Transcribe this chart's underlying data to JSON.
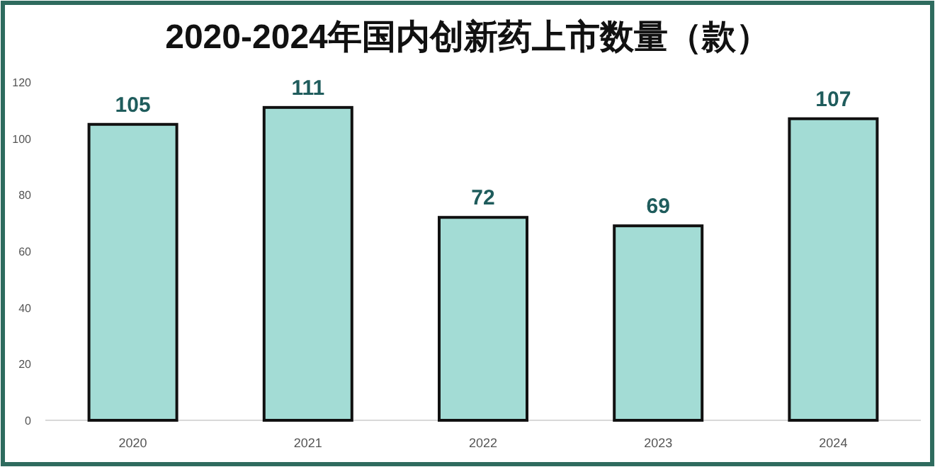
{
  "chart_data": {
    "type": "bar",
    "title": "2020-2024年国内创新药上市数量（款）",
    "categories": [
      "2020",
      "2021",
      "2022",
      "2023",
      "2024"
    ],
    "values": [
      105,
      111,
      72,
      69,
      107
    ],
    "color": "#a3dcd5",
    "ylim": [
      0,
      120
    ],
    "yticks": [
      0,
      20,
      40,
      60,
      80,
      100,
      120
    ],
    "data_labels": true
  }
}
